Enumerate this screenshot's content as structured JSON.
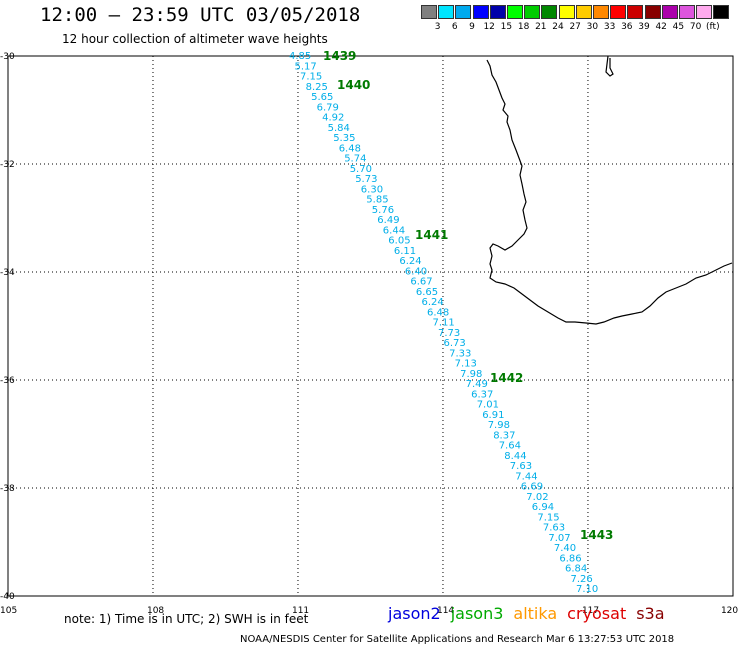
{
  "title": "12:00 – 23:59 UTC 03/05/2018",
  "subtitle": "12 hour collection of altimeter wave heights",
  "legend": {
    "colors": [
      "#808080",
      "#00e5ff",
      "#00aaee",
      "#0000ff",
      "#0000aa",
      "#00ff00",
      "#00cc00",
      "#008800",
      "#ffff00",
      "#ffcc00",
      "#ff8800",
      "#ff0000",
      "#cc0000",
      "#880000",
      "#aa00aa",
      "#dd55dd",
      "#ffaaee",
      "#000000"
    ],
    "labels": [
      "3",
      "6",
      "9",
      "12",
      "15",
      "18",
      "21",
      "24",
      "27",
      "30",
      "33",
      "36",
      "39",
      "42",
      "45",
      "70",
      "(ft)"
    ]
  },
  "axes": {
    "lon_ticks": [
      {
        "value": 105,
        "label": "105"
      },
      {
        "value": 108,
        "label": "108"
      },
      {
        "value": 111,
        "label": "111"
      },
      {
        "value": 114,
        "label": "114"
      },
      {
        "value": 117,
        "label": "117"
      },
      {
        "value": 120,
        "label": "120"
      }
    ],
    "lat_ticks": [
      {
        "value": -30,
        "label": "-30"
      },
      {
        "value": -32,
        "label": "-32"
      },
      {
        "value": -34,
        "label": "-34"
      },
      {
        "value": -36,
        "label": "-36"
      },
      {
        "value": -38,
        "label": "-38"
      },
      {
        "value": -40,
        "label": "-40"
      }
    ]
  },
  "wave_heights": [
    "4.85",
    "5.17",
    "7.15",
    "8.25",
    "5.65",
    "6.79",
    "4.92",
    "5.84",
    "5.35",
    "6.48",
    "5.74",
    "5.70",
    "5.73",
    "6.30",
    "5.85",
    "5.76",
    "6.49",
    "6.44",
    "6.05",
    "6.11",
    "6.24",
    "6.40",
    "6.67",
    "6.65",
    "6.24",
    "6.48",
    "7.11",
    "7.73",
    "6.73",
    "7.33",
    "7.13",
    "7.98",
    "7.49",
    "6.37",
    "7.01",
    "6.91",
    "7.98",
    "8.37",
    "7.64",
    "8.44",
    "7.63",
    "7.44",
    "6.69",
    "7.02",
    "6.94",
    "7.15",
    "7.63",
    "7.07",
    "7.40",
    "6.86",
    "6.84",
    "7.26",
    "7.10"
  ],
  "orbits": [
    "1439",
    "1440",
    "1441",
    "1442",
    "1443"
  ],
  "note": "note:  1) Time is in UTC;  2) SWH is in feet",
  "satellites": [
    {
      "name": "jason2",
      "color": "#0000dd"
    },
    {
      "name": "jason3",
      "color": "#00aa00"
    },
    {
      "name": "altika",
      "color": "#ff9900"
    },
    {
      "name": "cryosat",
      "color": "#dd0000"
    },
    {
      "name": "s3a",
      "color": "#880000"
    }
  ],
  "credit": "NOAA/NESDIS Center for Satellite Applications and Research    Mar  6 13:27:53 UTC 2018"
}
